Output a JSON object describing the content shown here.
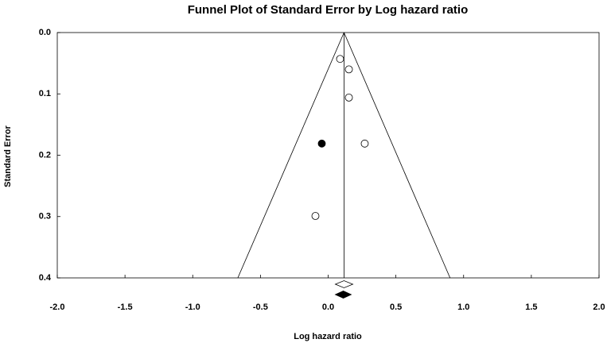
{
  "chart_data": {
    "type": "funnel",
    "title": "Funnel Plot of Standard Error by Log hazard ratio",
    "x_label": "Log hazard ratio",
    "y_label": "Standard Error",
    "xlim": [
      -2.0,
      2.0
    ],
    "xticks": [
      {
        "value": -2.0,
        "label": "-2.0"
      },
      -1.5,
      {
        "value": -1.0,
        "label": "-1.0"
      },
      -0.5,
      {
        "value": 0.0,
        "label": "0.0"
      },
      0.5,
      {
        "value": 1.0,
        "label": "1.0"
      },
      1.5,
      {
        "value": 2.0,
        "label": "2.0"
      }
    ],
    "ylim": [
      0.0,
      0.4
    ],
    "y_inverted": true,
    "yticks": [
      {
        "value": 0.0,
        "label": "0.0"
      },
      0.1,
      0.2,
      0.3,
      0.4
    ],
    "funnel_center": 0.117,
    "funnel_base": [
      -0.667,
      0.9
    ],
    "series": [
      {
        "marker": "open",
        "color": "#000000",
        "x": [
          0.088,
          0.153,
          0.153,
          0.27,
          -0.094
        ],
        "values": [
          0.043,
          0.06,
          0.106,
          0.181,
          0.299
        ]
      },
      {
        "marker": "filled",
        "color": "#000000",
        "x": [
          -0.047
        ],
        "values": [
          0.181
        ]
      }
    ],
    "summary": [
      {
        "marker": "open",
        "value": 0.117,
        "low": 0.053,
        "high": 0.182
      },
      {
        "marker": "filled",
        "value": 0.112,
        "low": 0.053,
        "high": 0.17
      }
    ]
  }
}
